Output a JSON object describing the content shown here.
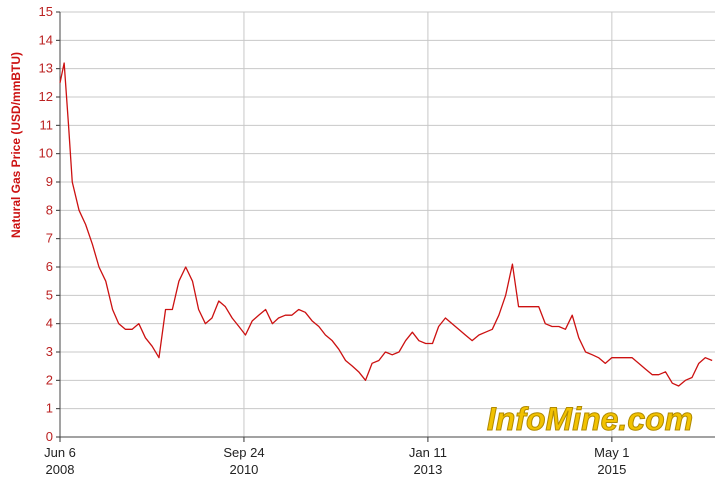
{
  "chart_data": {
    "type": "line",
    "y_label": "Natural Gas Price (USD/mmBTU)",
    "watermark": "InfoMine.com",
    "x": [
      "2008-06-06",
      "2008-06-25",
      "2008-07-15",
      "2008-08-01",
      "2008-09-01",
      "2008-10-01",
      "2008-11-01",
      "2008-12-01",
      "2009-01-01",
      "2009-02-01",
      "2009-03-01",
      "2009-04-01",
      "2009-05-01",
      "2009-06-01",
      "2009-07-01",
      "2009-08-01",
      "2009-09-01",
      "2009-10-01",
      "2009-11-01",
      "2009-12-01",
      "2010-01-01",
      "2010-02-01",
      "2010-03-01",
      "2010-04-01",
      "2010-05-01",
      "2010-06-01",
      "2010-07-01",
      "2010-08-01",
      "2010-09-01",
      "2010-10-01",
      "2010-11-01",
      "2010-12-01",
      "2011-01-01",
      "2011-02-01",
      "2011-03-01",
      "2011-04-01",
      "2011-05-01",
      "2011-06-01",
      "2011-07-01",
      "2011-08-01",
      "2011-09-01",
      "2011-10-01",
      "2011-11-01",
      "2011-12-01",
      "2012-01-01",
      "2012-02-01",
      "2012-03-01",
      "2012-04-01",
      "2012-05-01",
      "2012-06-01",
      "2012-07-01",
      "2012-08-01",
      "2012-09-01",
      "2012-10-01",
      "2012-11-01",
      "2012-12-01",
      "2013-01-01",
      "2013-02-01",
      "2013-03-01",
      "2013-04-01",
      "2013-05-01",
      "2013-06-01",
      "2013-07-01",
      "2013-08-01",
      "2013-09-01",
      "2013-10-01",
      "2013-11-01",
      "2013-12-01",
      "2014-01-01",
      "2014-02-01",
      "2014-03-01",
      "2014-04-01",
      "2014-05-01",
      "2014-06-01",
      "2014-07-01",
      "2014-08-01",
      "2014-09-01",
      "2014-10-01",
      "2014-11-01",
      "2014-12-01",
      "2015-01-01",
      "2015-02-01",
      "2015-03-01",
      "2015-04-01",
      "2015-05-01",
      "2015-06-01",
      "2015-07-01",
      "2015-08-01",
      "2015-09-01",
      "2015-10-01",
      "2015-11-01",
      "2015-12-01",
      "2016-01-01",
      "2016-02-01",
      "2016-03-01",
      "2016-04-01",
      "2016-05-01",
      "2016-06-01",
      "2016-07-01",
      "2016-08-01"
    ],
    "values": [
      12.5,
      13.2,
      11.0,
      9.0,
      8.0,
      7.5,
      6.8,
      6.0,
      5.5,
      4.5,
      4.0,
      3.8,
      3.8,
      4.0,
      3.5,
      3.2,
      2.8,
      4.5,
      4.5,
      5.5,
      6.0,
      5.5,
      4.5,
      4.0,
      4.2,
      4.8,
      4.6,
      4.2,
      3.9,
      3.6,
      4.1,
      4.3,
      4.5,
      4.0,
      4.2,
      4.3,
      4.3,
      4.5,
      4.4,
      4.1,
      3.9,
      3.6,
      3.4,
      3.1,
      2.7,
      2.5,
      2.3,
      2.0,
      2.6,
      2.7,
      3.0,
      2.9,
      3.0,
      3.4,
      3.7,
      3.4,
      3.3,
      3.3,
      3.9,
      4.2,
      4.0,
      3.8,
      3.6,
      3.4,
      3.6,
      3.7,
      3.8,
      4.3,
      5.0,
      6.1,
      4.6,
      4.6,
      4.6,
      4.6,
      4.0,
      3.9,
      3.9,
      3.8,
      4.3,
      3.5,
      3.0,
      2.9,
      2.8,
      2.6,
      2.8,
      2.8,
      2.8,
      2.8,
      2.6,
      2.4,
      2.2,
      2.2,
      2.3,
      1.9,
      1.8,
      2.0,
      2.1,
      2.6,
      2.8,
      2.7
    ],
    "color": "#cc1111",
    "xlim": [
      "2008-06-06",
      "2016-08-14"
    ],
    "xticks": [
      {
        "value": "2008-06-06",
        "label": [
          "Jun 6",
          "2008"
        ]
      },
      {
        "value": "2010-09-24",
        "label": [
          "Sep 24",
          "2010"
        ]
      },
      {
        "value": "2013-01-11",
        "label": [
          "Jan 11",
          "2013"
        ]
      },
      {
        "value": "2015-05-01",
        "label": [
          "May 1",
          "2015"
        ]
      }
    ],
    "ylim": [
      0,
      15
    ],
    "yticks": [
      0,
      1,
      2,
      3,
      4,
      5,
      6,
      7,
      8,
      9,
      10,
      11,
      12,
      13,
      14,
      15
    ],
    "grid": true
  }
}
